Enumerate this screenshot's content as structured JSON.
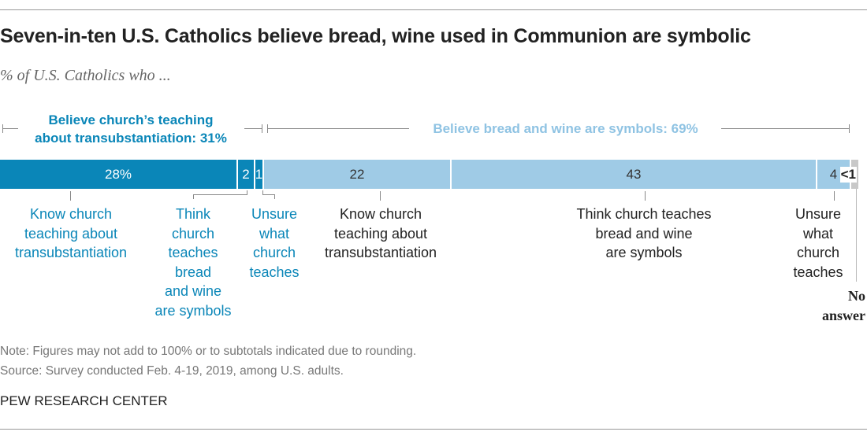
{
  "title": "Seven-in-ten U.S. Catholics believe bread, wine used in Communion are symbolic",
  "subtitle": "% of U.S. Catholics who ...",
  "groups": {
    "believe": "Believe church’s teaching about transubstantiation: 31%",
    "believe_line1": "Believe church’s teaching",
    "believe_line2": "about transubstantiation: 31%",
    "symbols": "Believe bread and wine are symbols: 69%"
  },
  "chart_data": {
    "type": "bar",
    "orientation": "horizontal-stacked",
    "title": "Seven-in-ten U.S. Catholics believe bread, wine used in Communion are symbolic",
    "categories": [
      "Know church teaching about transubstantiation",
      "Think church teaches bread and wine are symbols",
      "Unsure what church teaches",
      "Know church teaching about transubstantiation",
      "Think church teaches bread and wine are symbols",
      "Unsure what church teaches",
      "No answer"
    ],
    "values": [
      28,
      2,
      1,
      22,
      43,
      4,
      0.5
    ],
    "labels": [
      "28%",
      "2",
      "1",
      "22",
      "43",
      "4",
      "<1"
    ],
    "groups": [
      "believe",
      "believe",
      "believe",
      "symbols",
      "symbols",
      "symbols",
      "none"
    ],
    "colors": {
      "believe": "#0a86b8",
      "symbols": "#9fcbe6",
      "none": "#c8c8c8"
    }
  },
  "seg_labels": [
    [
      "Know church",
      "teaching about",
      "transubstantiation"
    ],
    [
      "Think",
      "church",
      "teaches",
      "bread",
      "and wine",
      "are symbols"
    ],
    [
      "Unsure",
      "what",
      "church",
      "teaches"
    ],
    [
      "Know church",
      "teaching about",
      "transubstantiation"
    ],
    [
      "Think church teaches",
      "bread and wine",
      "are symbols"
    ],
    [
      "Unsure",
      "what",
      "church",
      "teaches"
    ],
    [
      "No",
      "answer"
    ]
  ],
  "note": "Note: Figures may not add to 100% or to subtotals indicated due to rounding.",
  "source": "Source: Survey conducted Feb. 4-19, 2019, among U.S. adults.",
  "brand": "PEW RESEARCH CENTER"
}
